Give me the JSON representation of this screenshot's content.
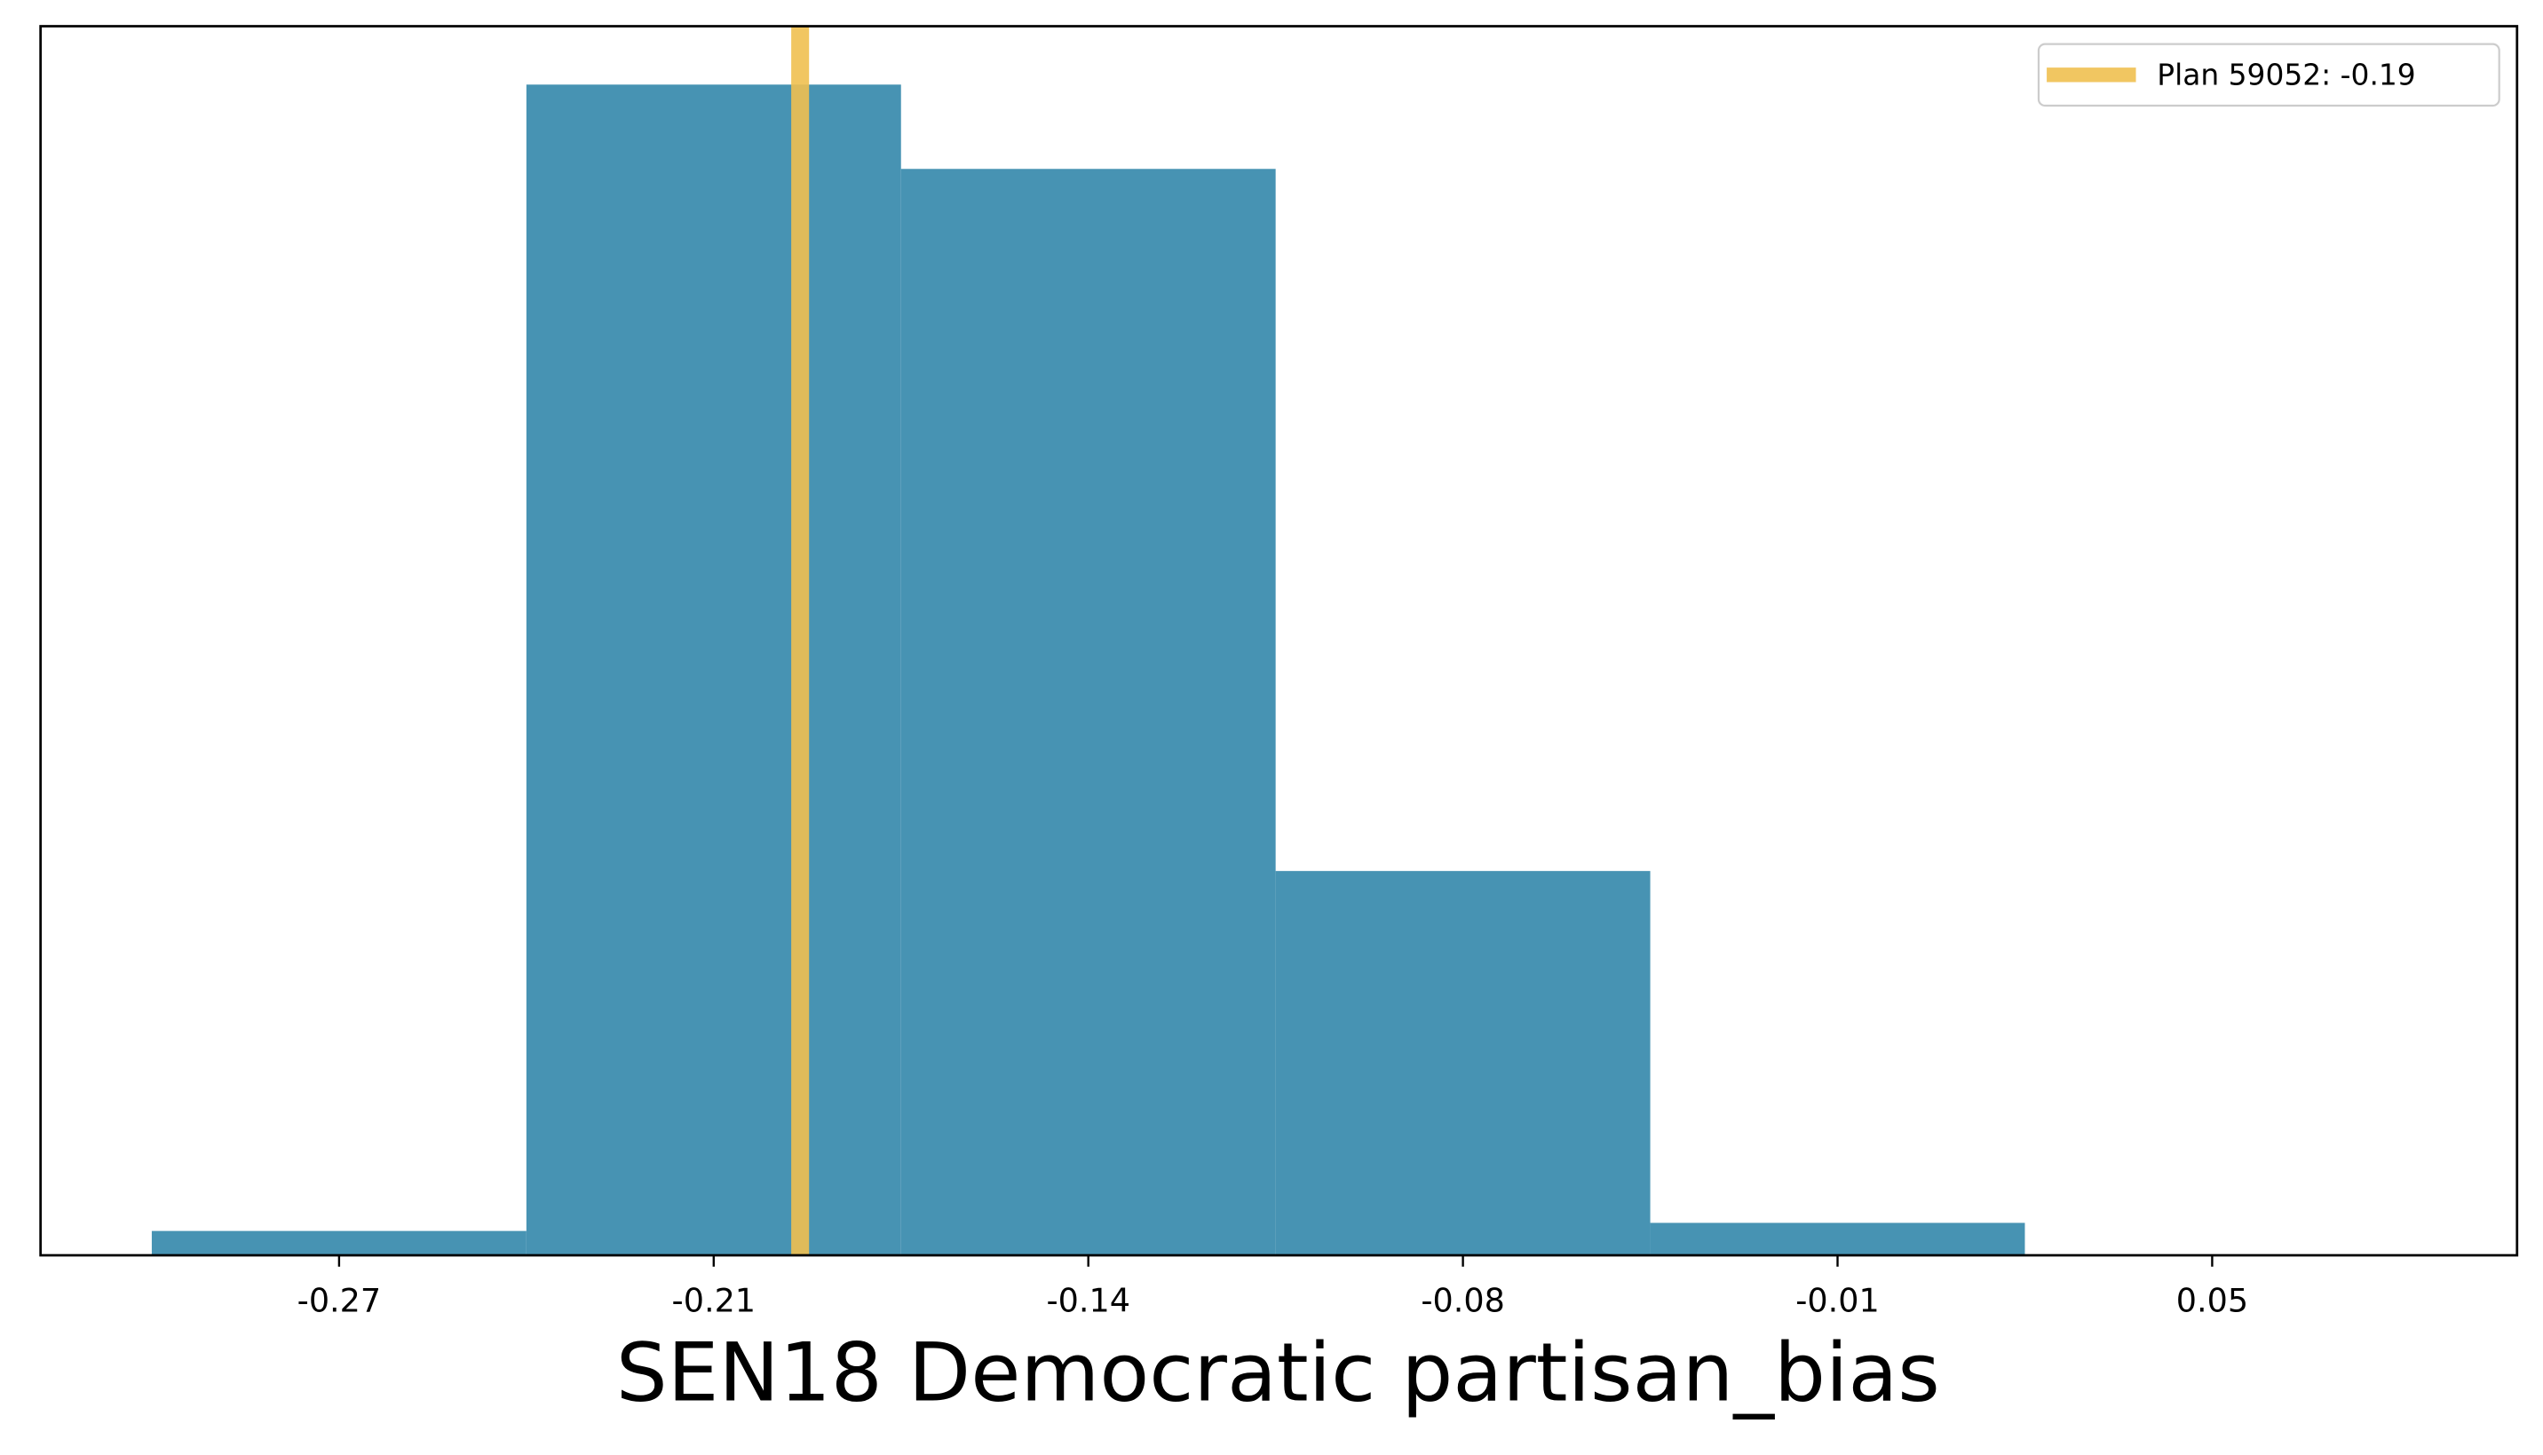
{
  "chart_data": {
    "type": "histogram",
    "xlabel": "SEN18 Democratic partisan_bias",
    "bins": [
      -0.3065,
      -0.2415,
      -0.1765,
      -0.1115,
      -0.0465,
      0.0185
    ],
    "values": [
      15,
      722,
      670,
      237,
      20
    ],
    "color": "#4793b3",
    "xlim": [
      -0.3258,
      0.1039
    ],
    "ylim": [
      0,
      758
    ],
    "xticks": [
      {
        "value": -0.274,
        "label": "-0.27"
      },
      {
        "value": -0.209,
        "label": "-0.21"
      },
      {
        "value": -0.144,
        "label": "-0.14"
      },
      {
        "value": -0.079,
        "label": "-0.08"
      },
      {
        "value": -0.014,
        "label": "-0.01"
      },
      {
        "value": 0.051,
        "label": "0.05"
      }
    ],
    "vline": {
      "name": "Plan 59052: -0.19",
      "value": -0.194,
      "color": "#f0c050"
    },
    "legend": "upper right"
  }
}
